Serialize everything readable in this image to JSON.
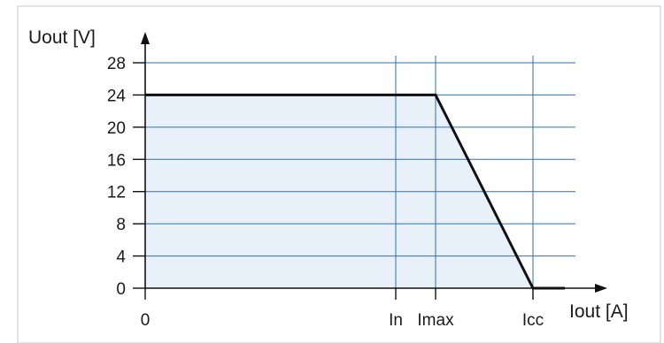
{
  "chart_data": {
    "type": "line",
    "xlabel": "Iout [A]",
    "ylabel": "Uout [V]",
    "x_ticks": [
      "0",
      "In",
      "Imax",
      "Icc"
    ],
    "y_ticks": [
      0,
      4,
      8,
      12,
      16,
      20,
      24,
      28
    ],
    "ylim": [
      0,
      28
    ],
    "grid": true,
    "series": [
      {
        "points": [
          {
            "x": "0",
            "y": 24
          },
          {
            "x": "In",
            "y": 24
          },
          {
            "x": "Imax",
            "y": 24
          },
          {
            "x": "Icc",
            "y": 0
          }
        ],
        "fill_under": true
      }
    ],
    "colors": {
      "grid": "#2f6fb5",
      "line": "#111111",
      "fill": "#e8f1f9",
      "axis": "#111111",
      "frame": "#c8c8c8"
    }
  }
}
